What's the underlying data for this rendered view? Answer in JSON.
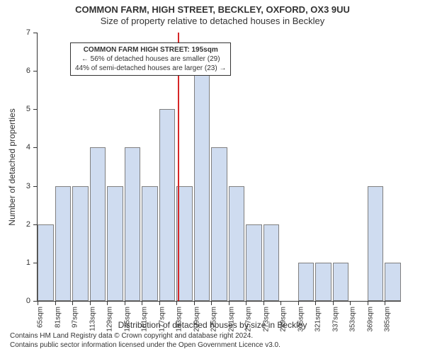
{
  "title_line1": "COMMON FARM, HIGH STREET, BECKLEY, OXFORD, OX3 9UU",
  "title_line2": "Size of property relative to detached houses in Beckley",
  "y_axis_label": "Number of detached properties",
  "x_axis_label": "Distribution of detached houses by size in Beckley",
  "caption_line1": "Contains HM Land Registry data © Crown copyright and database right 2024.",
  "caption_line2": "Contains public sector information licensed under the Open Government Licence v3.0.",
  "chart": {
    "type": "histogram",
    "bar_color": "#cfdcf0",
    "bar_border_color": "#7f7f7f",
    "axis_color": "#333333",
    "background_color": "#ffffff",
    "ref_line_color": "#d62728",
    "ref_line_value_sqm": 195,
    "ylim": [
      0,
      7
    ],
    "ytick_step": 1,
    "x_tick_start_sqm": 65,
    "x_tick_step_sqm": 16,
    "x_tick_count": 21,
    "x_tick_unit": "sqm",
    "xlim_sqm": [
      65,
      400
    ],
    "bar_bin_width_sqm": 16,
    "bars": [
      {
        "x_sqm": 65,
        "count": 2
      },
      {
        "x_sqm": 81,
        "count": 3
      },
      {
        "x_sqm": 97,
        "count": 3
      },
      {
        "x_sqm": 113,
        "count": 4
      },
      {
        "x_sqm": 129,
        "count": 3
      },
      {
        "x_sqm": 145,
        "count": 4
      },
      {
        "x_sqm": 161,
        "count": 3
      },
      {
        "x_sqm": 177,
        "count": 5
      },
      {
        "x_sqm": 193,
        "count": 3
      },
      {
        "x_sqm": 209,
        "count": 6
      },
      {
        "x_sqm": 225,
        "count": 4
      },
      {
        "x_sqm": 241,
        "count": 3
      },
      {
        "x_sqm": 257,
        "count": 2
      },
      {
        "x_sqm": 273,
        "count": 2
      },
      {
        "x_sqm": 305,
        "count": 1
      },
      {
        "x_sqm": 321,
        "count": 1
      },
      {
        "x_sqm": 337,
        "count": 1
      },
      {
        "x_sqm": 369,
        "count": 3
      },
      {
        "x_sqm": 385,
        "count": 1
      }
    ],
    "title_fontsize": 13,
    "axis_label_fontsize": 12,
    "tick_fontsize": 11,
    "caption_fontsize": 10,
    "infobox_fontsize": 10
  },
  "info_box": {
    "line1": "COMMON FARM HIGH STREET: 195sqm",
    "line2": "← 56% of detached houses are smaller (29)",
    "line3": "44% of semi-detached houses are larger (23) →",
    "border_color": "#333333",
    "background_color": "#ffffff"
  }
}
